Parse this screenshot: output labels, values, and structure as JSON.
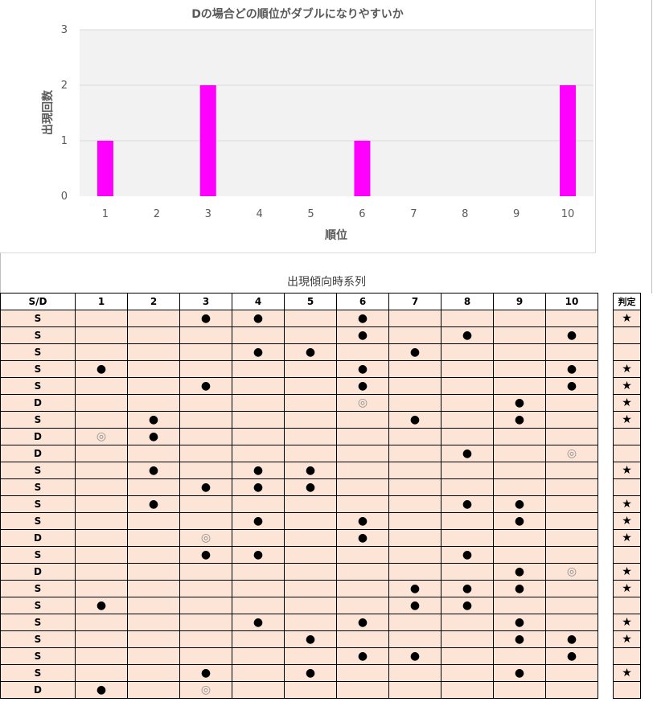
{
  "chart_data": {
    "type": "bar",
    "title": "Dの場合どの順位がダブルになりやすいか",
    "xlabel": "順位",
    "ylabel": "出現回数",
    "categories": [
      "1",
      "2",
      "3",
      "4",
      "5",
      "6",
      "7",
      "8",
      "9",
      "10"
    ],
    "values": [
      1,
      0,
      2,
      0,
      0,
      1,
      0,
      0,
      0,
      2
    ],
    "ylim": [
      0,
      3
    ],
    "yticks": [
      "0",
      "1",
      "2",
      "3"
    ],
    "grid": true,
    "bar_color": "#ff00ff",
    "plot_background": "#f2f2f2"
  },
  "table": {
    "title": "出現傾向時系列",
    "headers": [
      "S/D",
      "1",
      "2",
      "3",
      "4",
      "5",
      "6",
      "7",
      "8",
      "9",
      "10"
    ],
    "judge_header": "判定",
    "symbols": {
      "single": "●",
      "double": "◎",
      "star": "★"
    },
    "rows": [
      {
        "type": "S",
        "marks": [
          3,
          4,
          6
        ],
        "doubles": [],
        "star": true
      },
      {
        "type": "S",
        "marks": [
          6,
          8,
          10
        ],
        "doubles": [],
        "star": false
      },
      {
        "type": "S",
        "marks": [
          4,
          5,
          7
        ],
        "doubles": [],
        "star": false
      },
      {
        "type": "S",
        "marks": [
          1,
          6,
          10
        ],
        "doubles": [],
        "star": true
      },
      {
        "type": "S",
        "marks": [
          3,
          6,
          10
        ],
        "doubles": [],
        "star": true
      },
      {
        "type": "D",
        "marks": [
          9
        ],
        "doubles": [
          6
        ],
        "star": true
      },
      {
        "type": "S",
        "marks": [
          2,
          7,
          9
        ],
        "doubles": [],
        "star": true
      },
      {
        "type": "D",
        "marks": [
          2
        ],
        "doubles": [
          1
        ],
        "star": false
      },
      {
        "type": "D",
        "marks": [
          8
        ],
        "doubles": [
          10
        ],
        "star": false
      },
      {
        "type": "S",
        "marks": [
          2,
          4,
          5
        ],
        "doubles": [],
        "star": true
      },
      {
        "type": "S",
        "marks": [
          3,
          4,
          5
        ],
        "doubles": [],
        "star": false
      },
      {
        "type": "S",
        "marks": [
          2,
          8,
          9
        ],
        "doubles": [],
        "star": true
      },
      {
        "type": "S",
        "marks": [
          4,
          6,
          9
        ],
        "doubles": [],
        "star": true
      },
      {
        "type": "D",
        "marks": [
          6
        ],
        "doubles": [
          3
        ],
        "star": true
      },
      {
        "type": "S",
        "marks": [
          3,
          4,
          8
        ],
        "doubles": [],
        "star": false
      },
      {
        "type": "D",
        "marks": [
          9
        ],
        "doubles": [
          10
        ],
        "star": true
      },
      {
        "type": "S",
        "marks": [
          7,
          8,
          9
        ],
        "doubles": [],
        "star": true
      },
      {
        "type": "S",
        "marks": [
          1,
          7,
          8
        ],
        "doubles": [],
        "star": false
      },
      {
        "type": "S",
        "marks": [
          4,
          6,
          9
        ],
        "doubles": [],
        "star": true
      },
      {
        "type": "S",
        "marks": [
          5,
          9,
          10
        ],
        "doubles": [],
        "star": true
      },
      {
        "type": "S",
        "marks": [
          6,
          7,
          10
        ],
        "doubles": [],
        "star": false
      },
      {
        "type": "S",
        "marks": [
          3,
          5,
          9
        ],
        "doubles": [],
        "star": true
      },
      {
        "type": "D",
        "marks": [
          1
        ],
        "doubles": [
          3
        ],
        "star": false
      }
    ]
  }
}
